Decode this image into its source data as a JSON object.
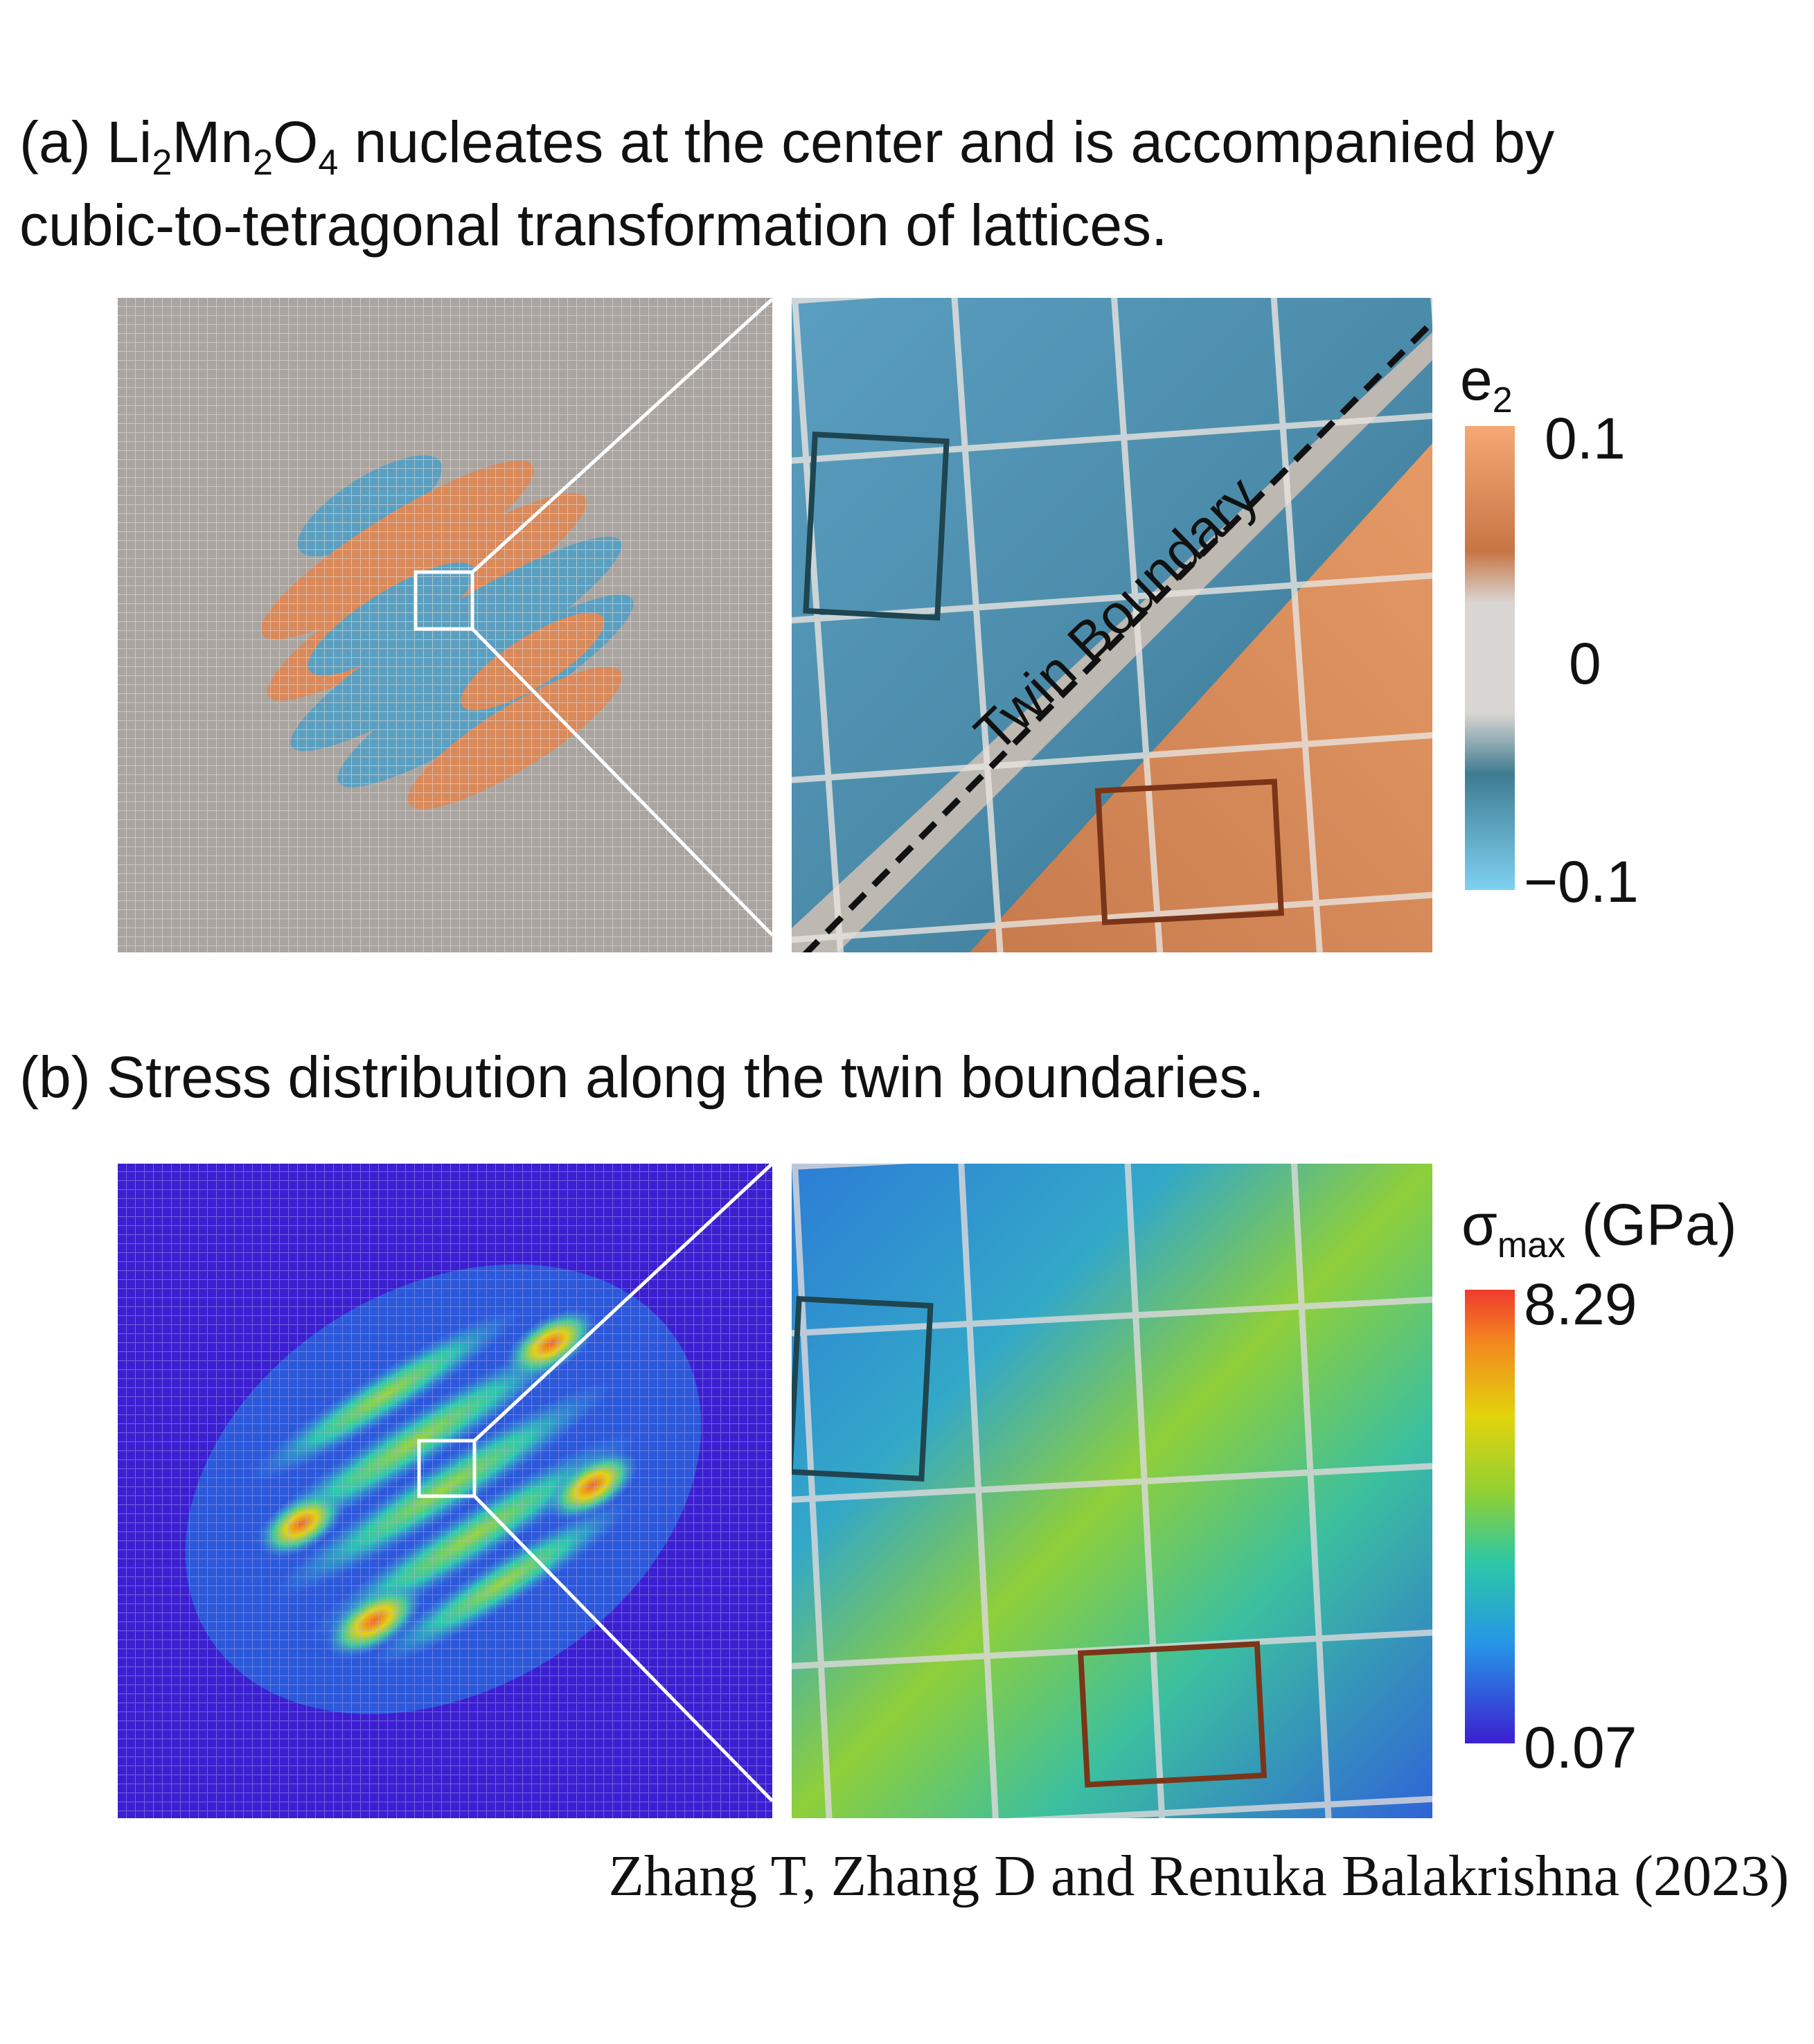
{
  "panel_a": {
    "caption_prefix": "(a) Li",
    "caption_sub1": "2",
    "caption_mid1": "Mn",
    "caption_sub2": "2",
    "caption_mid2": "O",
    "caption_sub3": "4",
    "caption_rest": " nucleates at the center and is accompanied by",
    "caption_line2": "cubic-to-tetragonal transformation of lattices.",
    "zoom_label": "Twin Boundary",
    "colorbar": {
      "title_main": "e",
      "title_sub": "2",
      "ticks": [
        "0.1",
        "0",
        "−0.1"
      ]
    }
  },
  "panel_b": {
    "caption": "(b) Stress distribution along the twin boundaries.",
    "colorbar": {
      "title_main": "σ",
      "title_sub": "max",
      "title_unit": " (GPa)",
      "ticks": [
        "8.29",
        "0.07"
      ]
    }
  },
  "credit": "Zhang T, Zhang D and Renuka Balakrishna (2023)",
  "colors": {
    "orange": "#d9895a",
    "blue": "#5b9fc0",
    "grey_bg": "#a9a49f",
    "stress_low": "#3c1fd0",
    "stress_high": "#f03a2e",
    "box_dark": "#1f4550",
    "box_brown": "#7a3518"
  }
}
